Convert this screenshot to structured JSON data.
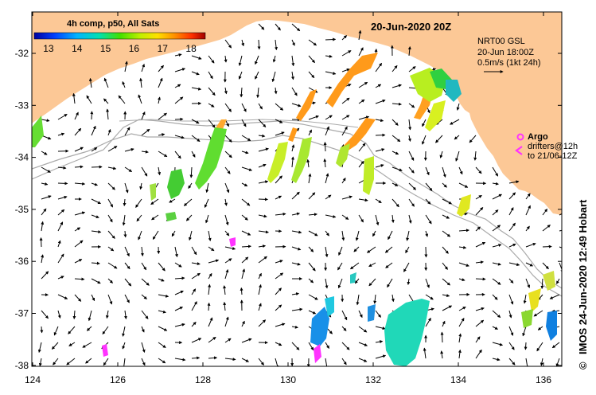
{
  "map": {
    "title": "20-Jun-2020 20Z",
    "colorbar": {
      "title": "4h comp, p50, All Sats",
      "tick_labels": [
        "13",
        "14",
        "15",
        "16",
        "17",
        "18"
      ],
      "min": 12.5,
      "max": 18.5
    },
    "info_box": {
      "line1": "NRT00 GSL",
      "line2": "20-Jun 18:00Z",
      "line3": "0.5m/s (1kt 24h)"
    },
    "argo_legend": {
      "argo_label": "Argo",
      "drifters_line1": "drifters@12h",
      "drifters_line2": "to 21/06-12Z",
      "argo_color": "#ff33ff"
    },
    "credit": "IMOS 24-Jun-2020 12:49 Hobart",
    "copyright": "©",
    "x_tick_labels": [
      "124",
      "126",
      "128",
      "130",
      "132",
      "134",
      "136"
    ],
    "y_tick_labels": [
      "-32",
      "-33",
      "-34",
      "-35",
      "-36",
      "-37",
      "-38"
    ],
    "land_color": "#fcc896",
    "bathymetry_color": "#aaaaaa"
  }
}
